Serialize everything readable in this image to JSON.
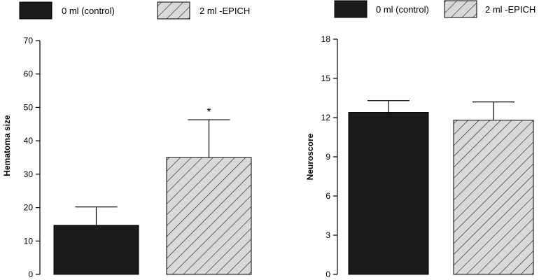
{
  "chart_data": [
    {
      "type": "bar",
      "title": "",
      "xlabel": "",
      "ylabel": "Hematoma size",
      "ylim": [
        0,
        70
      ],
      "yticks": [
        0,
        10,
        20,
        30,
        40,
        50,
        60,
        70
      ],
      "legend": {
        "placement": "top",
        "entries": [
          "0 ml (control)",
          "2 ml -EPICH"
        ]
      },
      "categories": [
        "0 ml (control)",
        "2 ml -EPICH"
      ],
      "values": [
        14.7,
        35.0
      ],
      "errors": [
        5.5,
        11.3
      ],
      "annotations": [
        "",
        "*"
      ],
      "grid": false
    },
    {
      "type": "bar",
      "title": "",
      "xlabel": "",
      "ylabel": "Neuroscore",
      "ylim": [
        0,
        18
      ],
      "yticks": [
        0,
        3,
        6,
        9,
        12,
        15,
        18
      ],
      "legend": {
        "placement": "top",
        "entries": [
          "0 ml (control)",
          "2 ml -EPICH"
        ]
      },
      "categories": [
        "0 ml (control)",
        "2 ml -EPICH"
      ],
      "values": [
        12.4,
        11.8
      ],
      "errors": [
        0.9,
        1.4
      ],
      "annotations": [
        "",
        ""
      ],
      "grid": false
    }
  ],
  "styles": {
    "control_fill": "#1a1a1a",
    "epich_fill": "#d9d9d9",
    "hatch_color": "#1a1a1a"
  }
}
